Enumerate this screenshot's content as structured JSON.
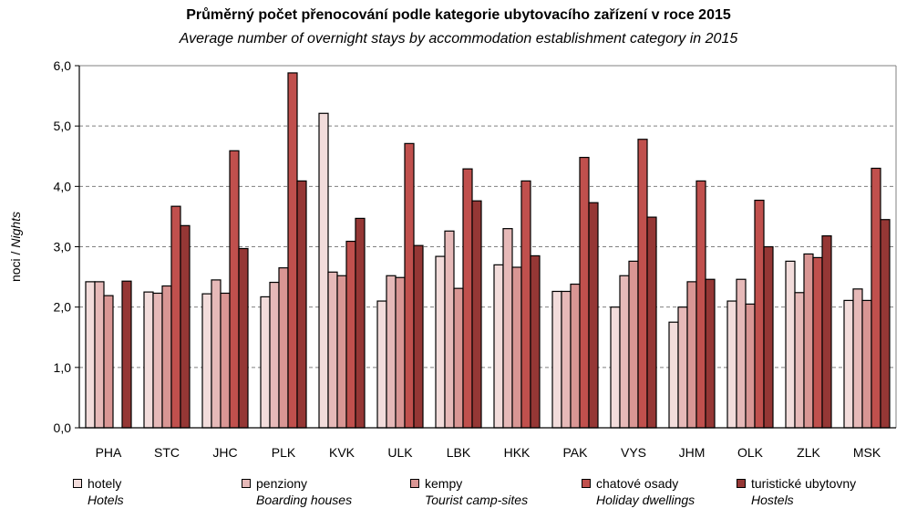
{
  "chart_data": {
    "type": "bar",
    "title": "Průměrný počet přenocování podle kategorie ubytovacího zařízení v roce 2015",
    "subtitle": "Average number of overnight stays by accommodation establishment category in 2015",
    "ylabel_cs": "noci / ",
    "ylabel_en": "Nights",
    "ylim": [
      0,
      6
    ],
    "yticks": [
      "0,0",
      "1,0",
      "2,0",
      "3,0",
      "4,0",
      "5,0",
      "6,0"
    ],
    "grid": true,
    "legend_placement": "bottom",
    "categories": [
      "PHA",
      "STC",
      "JHC",
      "PLK",
      "KVK",
      "ULK",
      "LBK",
      "HKK",
      "PAK",
      "VYS",
      "JHM",
      "OLK",
      "ZLK",
      "MSK"
    ],
    "series": [
      {
        "name": "hotely",
        "name_en": "Hotels",
        "color": "#F2DCDB",
        "values": [
          2.42,
          2.25,
          2.22,
          2.17,
          5.21,
          2.1,
          2.84,
          2.7,
          2.26,
          2.0,
          1.75,
          2.1,
          2.76,
          2.11
        ]
      },
      {
        "name": "penziony",
        "name_en": "Boarding houses",
        "color": "#E6B9B8",
        "values": [
          2.42,
          2.23,
          2.45,
          2.41,
          2.58,
          2.52,
          3.26,
          3.3,
          2.26,
          2.52,
          2.0,
          2.46,
          2.24,
          2.3
        ]
      },
      {
        "name": "kempy",
        "name_en": "Tourist camp-sites",
        "color": "#D99694",
        "values": [
          2.19,
          2.35,
          2.23,
          2.65,
          2.52,
          2.49,
          2.31,
          2.66,
          2.38,
          2.76,
          2.42,
          2.05,
          2.88,
          2.11
        ]
      },
      {
        "name": "chatové osady",
        "name_en": "Holiday dwellings",
        "color": "#C0504D",
        "values": [
          null,
          3.67,
          4.59,
          5.88,
          3.09,
          4.71,
          4.29,
          4.09,
          4.48,
          4.78,
          4.09,
          3.77,
          2.82,
          4.3
        ]
      },
      {
        "name": "turistické ubytovny",
        "name_en": "Hostels",
        "color": "#953735",
        "values": [
          2.43,
          3.35,
          2.97,
          4.09,
          3.47,
          3.02,
          3.76,
          2.85,
          3.73,
          3.49,
          2.46,
          3.0,
          3.18,
          3.45
        ]
      }
    ]
  }
}
